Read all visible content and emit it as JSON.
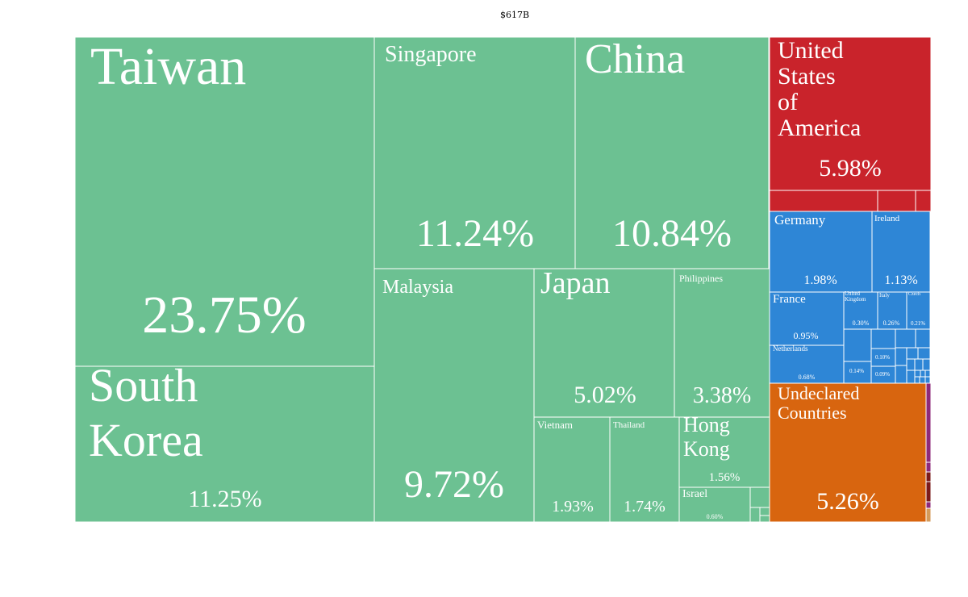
{
  "chart_data": {
    "type": "treemap",
    "title": "$617B",
    "colors": {
      "asia": "#6cc192",
      "americas": "#c9232b",
      "europe": "#2e86d6",
      "undeclared": "#d8650f",
      "africa": "#8c2a7a",
      "other_dark": "#7a1a1a",
      "other_light": "#d49a5a"
    },
    "tiles": [
      {
        "name": "Taiwan",
        "share": "23.75%",
        "region": "asia"
      },
      {
        "name": "South Korea",
        "share": "11.25%",
        "region": "asia"
      },
      {
        "name": "Singapore",
        "share": "11.24%",
        "region": "asia"
      },
      {
        "name": "China",
        "share": "10.84%",
        "region": "asia"
      },
      {
        "name": "Malaysia",
        "share": "9.72%",
        "region": "asia"
      },
      {
        "name": "Japan",
        "share": "5.02%",
        "region": "asia"
      },
      {
        "name": "Philippines",
        "share": "3.38%",
        "region": "asia"
      },
      {
        "name": "Vietnam",
        "share": "1.93%",
        "region": "asia"
      },
      {
        "name": "Thailand",
        "share": "1.74%",
        "region": "asia"
      },
      {
        "name": "Hong Kong",
        "share": "1.56%",
        "region": "asia"
      },
      {
        "name": "Israel",
        "share": "0.60%",
        "region": "asia"
      },
      {
        "name": "United States of America",
        "share": "5.98%",
        "region": "americas"
      },
      {
        "name": "Germany",
        "share": "1.98%",
        "region": "europe"
      },
      {
        "name": "Ireland",
        "share": "1.13%",
        "region": "europe"
      },
      {
        "name": "France",
        "share": "0.95%",
        "region": "europe"
      },
      {
        "name": "United Kingdom",
        "share": "0.30%",
        "region": "europe"
      },
      {
        "name": "Italy",
        "share": "0.26%",
        "region": "europe"
      },
      {
        "name": "Czech",
        "share": "0.21%",
        "region": "europe"
      },
      {
        "name": "Netherlands",
        "share": "0.68%",
        "region": "europe"
      },
      {
        "name": "",
        "share": "0.14%",
        "region": "europe"
      },
      {
        "name": "",
        "share": "0.10%",
        "region": "europe"
      },
      {
        "name": "",
        "share": "0.09%",
        "region": "europe"
      },
      {
        "name": "Undeclared Countries",
        "share": "5.26%",
        "region": "undeclared"
      }
    ]
  }
}
